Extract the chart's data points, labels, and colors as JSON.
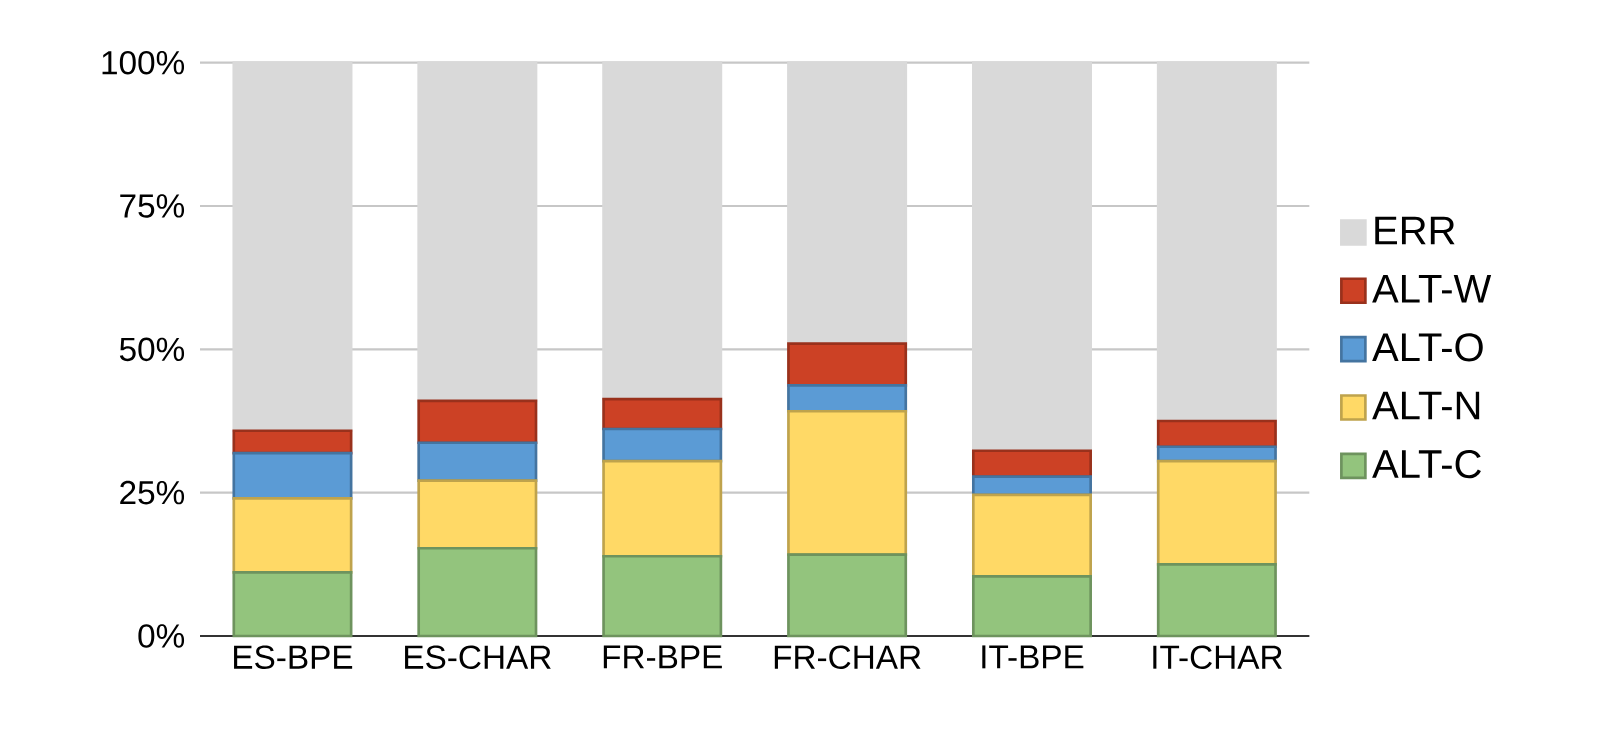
{
  "chart_data": {
    "type": "bar",
    "stacked": true,
    "categories": [
      "ES-BPE",
      "ES-CHAR",
      "FR-BPE",
      "FR-CHAR",
      "IT-BPE",
      "IT-CHAR"
    ],
    "series": [
      {
        "name": "ALT-C",
        "color": "#93c47d",
        "values": [
          11.1,
          15.3,
          13.9,
          14.2,
          10.4,
          12.5
        ]
      },
      {
        "name": "ALT-N",
        "color": "#ffd966",
        "values": [
          12.9,
          11.8,
          16.6,
          25.0,
          14.2,
          18.0
        ]
      },
      {
        "name": "ALT-O",
        "color": "#5b9bd5",
        "values": [
          7.9,
          6.6,
          5.6,
          4.5,
          3.2,
          2.5
        ]
      },
      {
        "name": "ALT-W",
        "color": "#cc4125",
        "values": [
          3.9,
          7.3,
          5.2,
          7.3,
          4.5,
          4.5
        ]
      },
      {
        "name": "ERR",
        "color": "#d9d9d9",
        "values": [
          64.2,
          59.0,
          58.7,
          49.0,
          67.7,
          62.5
        ]
      }
    ],
    "ylim": [
      0,
      100
    ],
    "yticks": [
      {
        "value": 0,
        "label": "0%"
      },
      {
        "value": 25,
        "label": "25%"
      },
      {
        "value": 50,
        "label": "50%"
      },
      {
        "value": 75,
        "label": "75%"
      },
      {
        "value": 100,
        "label": "100%"
      }
    ],
    "grid": "y",
    "legend": "right"
  }
}
